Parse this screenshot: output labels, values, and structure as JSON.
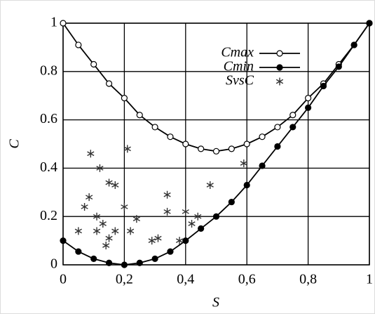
{
  "chart_data": {
    "type": "line",
    "xlabel": "S",
    "ylabel": "C",
    "xlim": [
      0,
      1
    ],
    "ylim": [
      0,
      1
    ],
    "xticks": [
      0,
      {
        "value": 0.2,
        "label": "0,2"
      },
      {
        "value": 0.4,
        "label": "0,4"
      },
      {
        "value": 0.6,
        "label": "0,6"
      },
      {
        "value": 0.8,
        "label": "0,8"
      },
      1
    ],
    "yticks": [
      0,
      0.2,
      0.4,
      0.6,
      0.8,
      1
    ],
    "grid": true,
    "legend": "upper right",
    "series": [
      {
        "name": "Cmax",
        "color": "#000000",
        "marker": "open-circle",
        "x": [
          0,
          0.05,
          0.1,
          0.15,
          0.2,
          0.25,
          0.3,
          0.35,
          0.4,
          0.45,
          0.5,
          0.55,
          0.6,
          0.65,
          0.7,
          0.75,
          0.8,
          0.85,
          0.9,
          0.95,
          1
        ],
        "values": [
          1,
          0.91,
          0.83,
          0.75,
          0.69,
          0.62,
          0.57,
          0.53,
          0.5,
          0.48,
          0.47,
          0.48,
          0.5,
          0.53,
          0.57,
          0.62,
          0.69,
          0.75,
          0.83,
          0.91,
          1
        ]
      },
      {
        "name": "Cmin",
        "color": "#000000",
        "marker": "filled-circle",
        "x": [
          0,
          0.05,
          0.1,
          0.15,
          0.2,
          0.25,
          0.3,
          0.35,
          0.4,
          0.45,
          0.5,
          0.55,
          0.6,
          0.65,
          0.7,
          0.75,
          0.8,
          0.85,
          0.9,
          0.95,
          1
        ],
        "values": [
          0.1,
          0.055,
          0.025,
          0.008,
          0,
          0.008,
          0.025,
          0.055,
          0.1,
          0.15,
          0.2,
          0.26,
          0.33,
          0.41,
          0.49,
          0.57,
          0.65,
          0.74,
          0.82,
          0.91,
          1
        ]
      },
      {
        "name": "SvsC",
        "color": "#333333",
        "marker": "asterisk",
        "x": [
          0.09,
          0.12,
          0.21,
          0.15,
          0.17,
          0.085,
          0.07,
          0.2,
          0.34,
          0.48,
          0.59,
          0.05,
          0.11,
          0.13,
          0.11,
          0.17,
          0.22,
          0.24,
          0.34,
          0.4,
          0.44,
          0.42,
          0.14,
          0.31,
          0.29,
          0.38,
          0.15
        ],
        "values": [
          0.46,
          0.4,
          0.48,
          0.34,
          0.33,
          0.28,
          0.24,
          0.24,
          0.29,
          0.33,
          0.42,
          0.14,
          0.2,
          0.17,
          0.14,
          0.14,
          0.14,
          0.19,
          0.22,
          0.22,
          0.2,
          0.17,
          0.08,
          0.11,
          0.1,
          0.1,
          0.11
        ]
      }
    ]
  }
}
